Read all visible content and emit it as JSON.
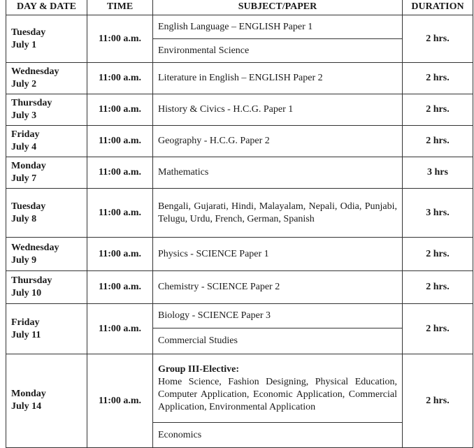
{
  "headers": {
    "day": "DAY & DATE",
    "time": "TIME",
    "subject": "SUBJECT/PAPER",
    "duration": "DURATION"
  },
  "rows": [
    {
      "day": "Tuesday",
      "date": "July 1",
      "time": "11:00 a.m.",
      "subjects": [
        "English Language – ENGLISH Paper 1",
        "Environmental Science"
      ],
      "duration": "2 hrs."
    },
    {
      "day": "Wednesday",
      "date": "July 2",
      "time": "11:00 a.m.",
      "subjects": [
        "Literature in English – ENGLISH Paper 2"
      ],
      "duration": "2 hrs."
    },
    {
      "day": "Thursday",
      "date": "July 3",
      "time": "11:00 a.m.",
      "subjects": [
        "History & Civics - H.C.G. Paper 1"
      ],
      "duration": "2 hrs."
    },
    {
      "day": "Friday",
      "date": "July 4",
      "time": "11:00 a.m.",
      "subjects": [
        "Geography - H.C.G. Paper 2"
      ],
      "duration": "2 hrs."
    },
    {
      "day": "Monday",
      "date": "July 7",
      "time": "11:00 a.m.",
      "subjects": [
        "Mathematics"
      ],
      "duration": "3 hrs"
    },
    {
      "day": "Tuesday",
      "date": "July 8",
      "time": "11:00 a.m.",
      "subjects": [
        "Bengali, Gujarati, Hindi, Malayalam, Nepali, Odia, Punjabi, Telugu, Urdu, French, German, Spanish"
      ],
      "duration": "3 hrs."
    },
    {
      "day": "Wednesday",
      "date": "July 9",
      "time": "11:00 a.m.",
      "subjects": [
        "Physics - SCIENCE Paper 1"
      ],
      "duration": "2 hrs."
    },
    {
      "day": "Thursday",
      "date": "July 10",
      "time": "11:00 a.m.",
      "subjects": [
        "Chemistry - SCIENCE Paper 2"
      ],
      "duration": "2 hrs."
    },
    {
      "day": "Friday",
      "date": "July 11",
      "time": "11:00 a.m.",
      "subjects": [
        "Biology - SCIENCE Paper 3",
        "Commercial Studies"
      ],
      "duration": "2 hrs."
    },
    {
      "day": "Monday",
      "date": "July 14",
      "time": "11:00 a.m.",
      "group_heading": "Group III-Elective:",
      "subjects": [
        "Home Science, Fashion Designing, Physical Education, Computer Application, Economic Application, Commercial Application, Environmental Application",
        "Economics"
      ],
      "duration": "2 hrs."
    }
  ]
}
